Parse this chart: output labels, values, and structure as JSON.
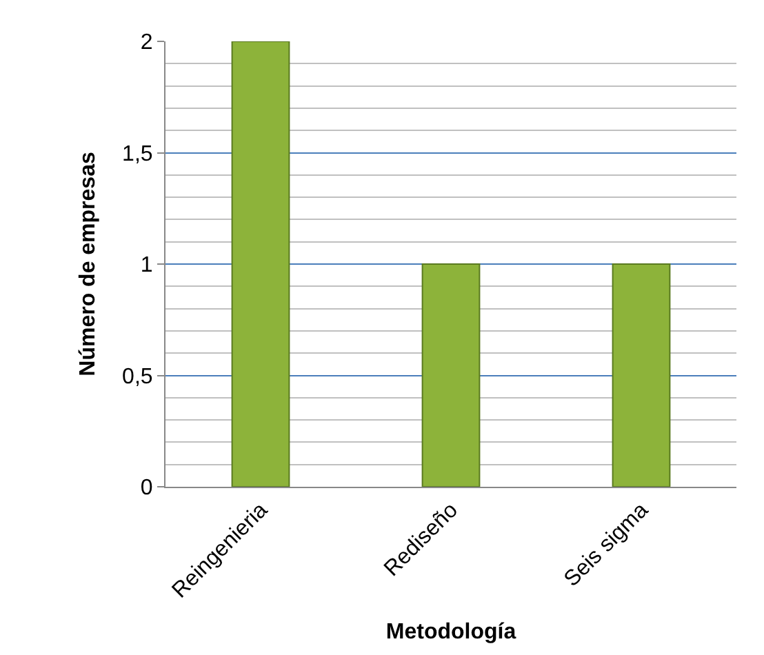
{
  "chart_data": {
    "type": "bar",
    "categories": [
      "Reingenieria",
      "Rediseño",
      "Seis sigma"
    ],
    "values": [
      2,
      1,
      1
    ],
    "color": "#8db33a",
    "xlabel": "Metodología",
    "ylabel": "Número de empresas",
    "ylim": [
      0,
      2
    ],
    "yticks": [
      0,
      {
        "value": 0.5,
        "label": "0,5"
      },
      1,
      {
        "value": 1.5,
        "label": "1,5"
      },
      2
    ],
    "grid": "y"
  }
}
